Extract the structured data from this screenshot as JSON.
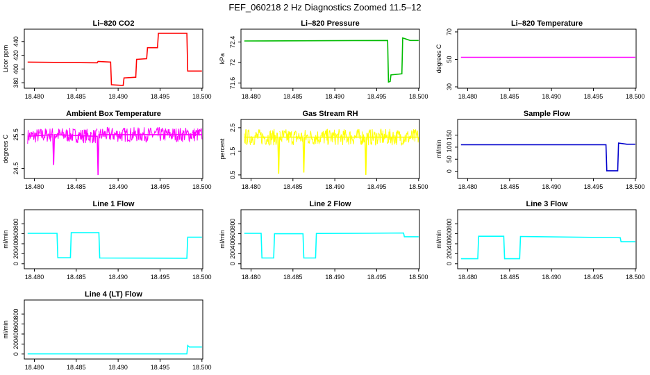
{
  "figure": {
    "title": "FEF_060218  2 Hz Diagnostics Zoomed 11.5–12"
  },
  "x_axis": {
    "min": 18.4788,
    "max": 18.5001,
    "ticks": [
      18.48,
      18.485,
      18.49,
      18.495,
      18.5
    ],
    "tick_labels": [
      "18.480",
      "18.485",
      "18.490",
      "18.495",
      "18.500"
    ]
  },
  "chart_data": [
    {
      "id": "co2",
      "type": "line",
      "title": "Li–820 CO2",
      "ylabel": "Licor ppm",
      "color": "#ff0000",
      "ylim": [
        372,
        458
      ],
      "yticks": [
        380,
        400,
        420,
        440
      ],
      "series": [
        {
          "x": [
            18.4792,
            18.4875,
            18.4876,
            18.4891,
            18.4892,
            18.4906,
            18.4907,
            18.4921,
            18.4922,
            18.4934,
            18.4935,
            18.4947,
            18.4948,
            18.4982,
            18.4983,
            18.5
          ],
          "y": [
            410,
            409,
            411,
            410,
            377,
            376,
            387,
            388,
            414,
            415,
            431,
            431,
            452,
            452,
            397,
            397
          ]
        }
      ]
    },
    {
      "id": "pressure",
      "type": "line",
      "title": "Li–820 Pressure",
      "ylabel": "kPa",
      "color": "#00bb00",
      "ylim": [
        71.5,
        72.65
      ],
      "yticks": [
        71.6,
        72.0,
        72.4
      ],
      "series": [
        {
          "x": [
            18.4792,
            18.4963,
            18.4964,
            18.4966,
            18.4967,
            18.498,
            18.4981,
            18.499,
            18.5
          ],
          "y": [
            72.42,
            72.43,
            71.62,
            71.63,
            71.76,
            71.78,
            72.48,
            72.43,
            72.43
          ]
        }
      ]
    },
    {
      "id": "li820-temp",
      "type": "line",
      "title": "Li–820 Temperature",
      "ylabel": "degrees C",
      "color": "#ff00ff",
      "ylim": [
        29,
        72
      ],
      "yticks": [
        30,
        50,
        70
      ],
      "series": [
        {
          "x": [
            18.4792,
            18.5
          ],
          "y": [
            51.5,
            51.5
          ]
        }
      ]
    },
    {
      "id": "box-temp",
      "type": "line",
      "title": "Ambient Box Temperature",
      "ylabel": "degrees C",
      "color": "#ff00ff",
      "ylim": [
        24.2,
        25.95
      ],
      "yticks": [
        24.5,
        25.5
      ],
      "series": [
        {
          "x": [
            18.4792,
            18.4822,
            18.4823,
            18.4824,
            18.4875,
            18.4876,
            18.4877,
            18.5
          ],
          "y": [
            25.45,
            25.5,
            24.6,
            25.5,
            25.45,
            24.3,
            25.5,
            25.5
          ]
        }
      ],
      "noise": 0.22
    },
    {
      "id": "rh",
      "type": "line",
      "title": "Gas Stream RH",
      "ylabel": "percent",
      "color": "#ffff00",
      "ylim": [
        0.35,
        2.85
      ],
      "yticks": [
        0.5,
        1.5,
        2.5
      ],
      "series": [
        {
          "x": [
            18.4792,
            18.4832,
            18.4833,
            18.4834,
            18.4862,
            18.4863,
            18.4864,
            18.4936,
            18.4937,
            18.4938,
            18.5
          ],
          "y": [
            2.1,
            2.1,
            0.55,
            2.1,
            2.1,
            0.6,
            2.1,
            2.1,
            0.5,
            2.1,
            2.1
          ]
        }
      ],
      "noise": 0.35
    },
    {
      "id": "sample-flow",
      "type": "line",
      "title": "Sample Flow",
      "ylabel": "ml/min",
      "color": "#0000cc",
      "ylim": [
        -30,
        215
      ],
      "yticks": [
        0,
        50,
        100,
        150
      ],
      "series": [
        {
          "x": [
            18.4792,
            18.4965,
            18.4966,
            18.4979,
            18.498,
            18.499,
            18.5
          ],
          "y": [
            110,
            110,
            2,
            2,
            117,
            112,
            112
          ]
        }
      ]
    },
    {
      "id": "line1-flow",
      "type": "line",
      "title": "Line 1 Flow",
      "ylabel": "ml/min",
      "color": "#00ffff",
      "ylim": [
        -100,
        1080
      ],
      "yticks": [
        0,
        200,
        400,
        600,
        800
      ],
      "series": [
        {
          "x": [
            18.4792,
            18.4827,
            18.4828,
            18.4843,
            18.4844,
            18.4877,
            18.4878,
            18.4982,
            18.4983,
            18.5
          ],
          "y": [
            610,
            610,
            120,
            120,
            620,
            620,
            115,
            110,
            530,
            530
          ]
        }
      ]
    },
    {
      "id": "line2-flow",
      "type": "line",
      "title": "Line 2 Flow",
      "ylabel": "ml/min",
      "color": "#00ffff",
      "ylim": [
        -100,
        1080
      ],
      "yticks": [
        0,
        200,
        400,
        600,
        800
      ],
      "series": [
        {
          "x": [
            18.4792,
            18.4812,
            18.4813,
            18.4827,
            18.4828,
            18.4862,
            18.4863,
            18.4877,
            18.4878,
            18.4982,
            18.4983,
            18.5
          ],
          "y": [
            610,
            610,
            115,
            115,
            600,
            600,
            115,
            115,
            605,
            615,
            540,
            540
          ]
        }
      ]
    },
    {
      "id": "line3-flow",
      "type": "line",
      "title": "Line 3 Flow",
      "ylabel": "ml/min",
      "color": "#00ffff",
      "ylim": [
        -100,
        1080
      ],
      "yticks": [
        0,
        200,
        400,
        600,
        800
      ],
      "series": [
        {
          "x": [
            18.4792,
            18.4812,
            18.4813,
            18.4843,
            18.4844,
            18.4862,
            18.4863,
            18.4982,
            18.4983,
            18.5
          ],
          "y": [
            100,
            100,
            550,
            550,
            100,
            100,
            545,
            520,
            440,
            440
          ]
        }
      ]
    },
    {
      "id": "line4-flow",
      "type": "line",
      "title": "Line 4 (LT) Flow",
      "ylabel": "ml/min",
      "color": "#00ffff",
      "ylim": [
        -100,
        1080
      ],
      "yticks": [
        0,
        200,
        400,
        600,
        800
      ],
      "series": [
        {
          "x": [
            18.4792,
            18.4982,
            18.4983,
            18.4985,
            18.5
          ],
          "y": [
            3,
            3,
            170,
            140,
            140
          ]
        }
      ]
    }
  ]
}
